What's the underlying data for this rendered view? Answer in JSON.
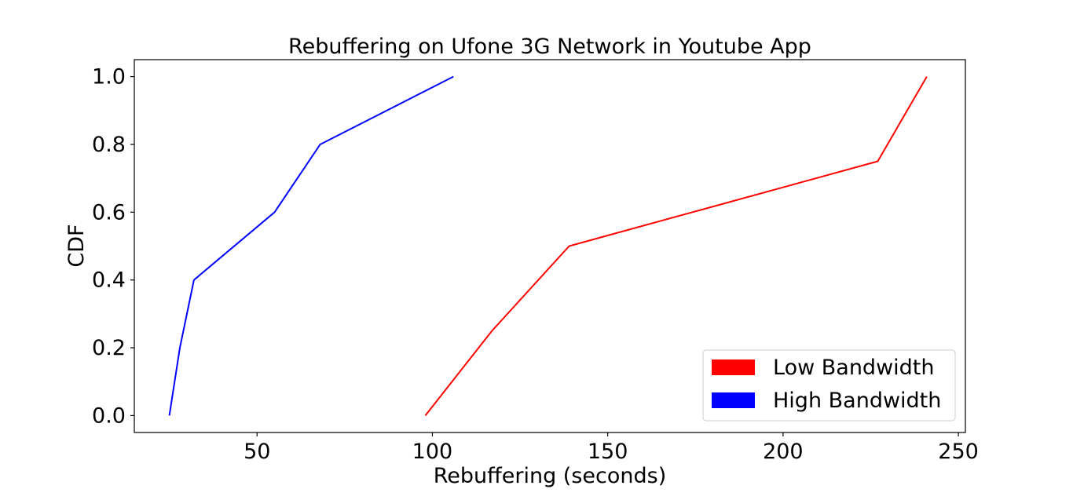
{
  "chart_data": {
    "type": "line",
    "title": "Rebuffering on Ufone 3G Network in Youtube App",
    "xlabel": "Rebuffering (seconds)",
    "ylabel": "CDF",
    "xlim": [
      15,
      252
    ],
    "ylim": [
      -0.05,
      1.05
    ],
    "xticks": [
      50,
      100,
      150,
      200,
      250
    ],
    "yticks": [
      0.0,
      0.2,
      0.4,
      0.6,
      0.8,
      1.0
    ],
    "grid": false,
    "legend_position": "lower-right",
    "series": [
      {
        "name": "Low Bandwidth",
        "color": "#ff0000",
        "x": [
          98,
          117,
          139,
          227,
          241
        ],
        "y": [
          0.0,
          0.25,
          0.5,
          0.75,
          1.0
        ]
      },
      {
        "name": "High Bandwidth",
        "color": "#0000ff",
        "x": [
          25,
          28,
          32,
          55,
          68,
          106
        ],
        "y": [
          0.0,
          0.2,
          0.4,
          0.6,
          0.8,
          1.0
        ]
      }
    ]
  }
}
